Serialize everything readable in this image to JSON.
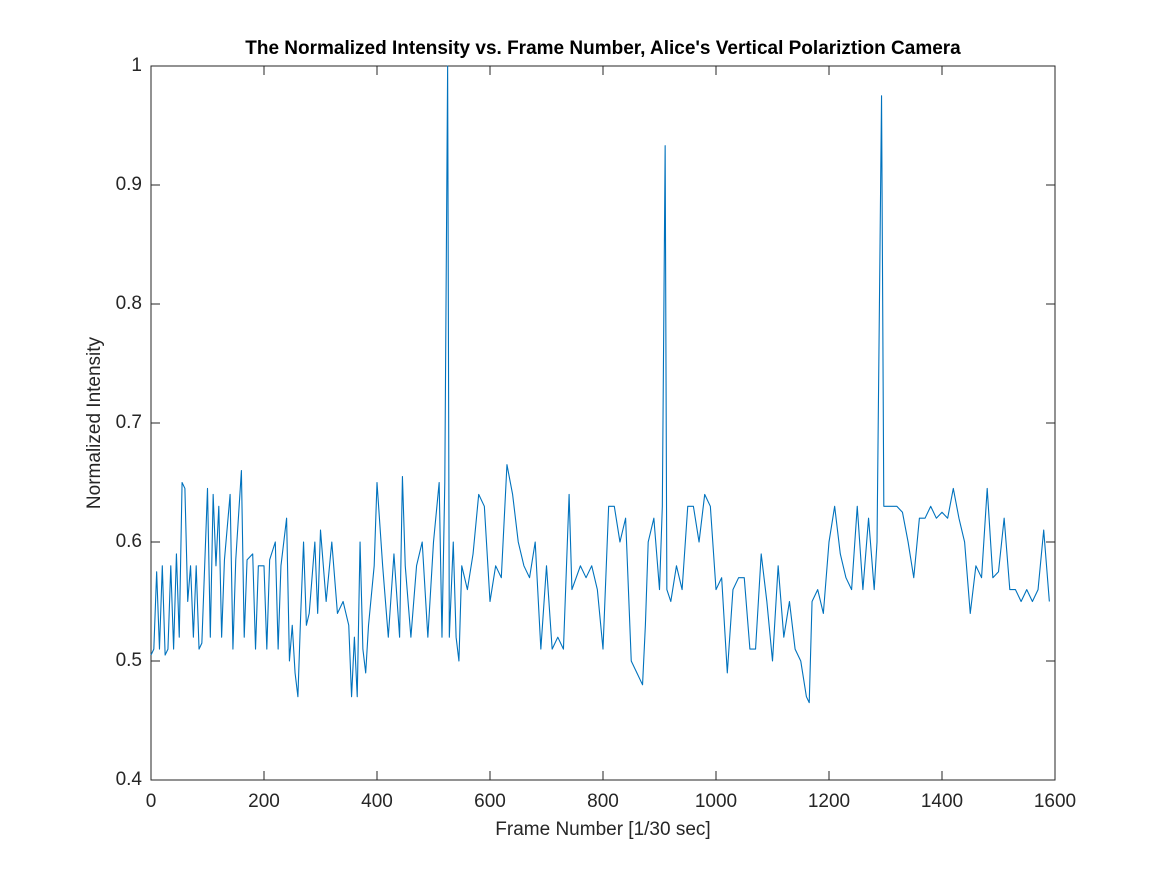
{
  "chart_data": {
    "type": "line",
    "title": "The Normalized Intensity vs. Frame Number, Alice's Vertical Polariztion Camera",
    "x_label": "Frame Number [1/30 sec]",
    "y_label": "Normalized Intensity",
    "xlim": [
      0,
      1600
    ],
    "ylim": [
      0.4,
      1
    ],
    "xticks": [
      0,
      200,
      400,
      600,
      800,
      1000,
      1200,
      1400,
      1600
    ],
    "yticks": [
      0.4,
      0.5,
      0.6,
      0.7,
      0.8,
      0.9,
      1
    ],
    "grid": false,
    "series": [
      {
        "name": "Normalized Intensity",
        "color": "#0072bd",
        "x": [
          0,
          5,
          10,
          15,
          20,
          25,
          30,
          35,
          40,
          45,
          50,
          55,
          60,
          65,
          70,
          75,
          80,
          85,
          90,
          100,
          105,
          110,
          115,
          120,
          125,
          130,
          140,
          145,
          150,
          160,
          165,
          170,
          180,
          185,
          190,
          200,
          205,
          210,
          220,
          225,
          230,
          240,
          245,
          250,
          255,
          260,
          265,
          270,
          275,
          280,
          290,
          295,
          300,
          310,
          320,
          330,
          340,
          350,
          355,
          360,
          365,
          370,
          375,
          380,
          385,
          395,
          400,
          410,
          420,
          430,
          440,
          445,
          450,
          460,
          470,
          480,
          490,
          500,
          510,
          515,
          520,
          525,
          528,
          535,
          540,
          545,
          550,
          560,
          570,
          580,
          590,
          600,
          610,
          620,
          630,
          640,
          650,
          660,
          670,
          680,
          690,
          700,
          710,
          720,
          730,
          740,
          745,
          760,
          770,
          780,
          790,
          800,
          810,
          820,
          830,
          840,
          850,
          860,
          870,
          875,
          880,
          890,
          900,
          905,
          910,
          913,
          920,
          930,
          940,
          950,
          960,
          970,
          980,
          990,
          1000,
          1010,
          1020,
          1030,
          1040,
          1050,
          1060,
          1070,
          1080,
          1090,
          1100,
          1110,
          1120,
          1130,
          1140,
          1150,
          1160,
          1165,
          1170,
          1180,
          1190,
          1200,
          1210,
          1220,
          1230,
          1240,
          1250,
          1260,
          1270,
          1280,
          1285,
          1293,
          1297,
          1310,
          1320,
          1330,
          1340,
          1350,
          1360,
          1370,
          1380,
          1390,
          1400,
          1410,
          1420,
          1430,
          1440,
          1450,
          1460,
          1470,
          1480,
          1490,
          1500,
          1510,
          1520,
          1530,
          1540,
          1550,
          1560,
          1570,
          1580,
          1590
        ],
        "values": [
          0.505,
          0.51,
          0.575,
          0.51,
          0.58,
          0.505,
          0.51,
          0.58,
          0.51,
          0.59,
          0.52,
          0.65,
          0.645,
          0.55,
          0.58,
          0.52,
          0.58,
          0.51,
          0.515,
          0.645,
          0.52,
          0.64,
          0.58,
          0.63,
          0.52,
          0.585,
          0.64,
          0.51,
          0.585,
          0.66,
          0.52,
          0.585,
          0.59,
          0.51,
          0.58,
          0.58,
          0.51,
          0.585,
          0.6,
          0.51,
          0.58,
          0.62,
          0.5,
          0.53,
          0.49,
          0.47,
          0.54,
          0.6,
          0.53,
          0.54,
          0.6,
          0.54,
          0.61,
          0.55,
          0.6,
          0.54,
          0.55,
          0.53,
          0.47,
          0.52,
          0.47,
          0.6,
          0.51,
          0.49,
          0.53,
          0.58,
          0.65,
          0.58,
          0.52,
          0.59,
          0.52,
          0.655,
          0.58,
          0.52,
          0.58,
          0.6,
          0.52,
          0.6,
          0.65,
          0.52,
          0.65,
          1.0,
          0.52,
          0.6,
          0.52,
          0.5,
          0.58,
          0.56,
          0.59,
          0.64,
          0.63,
          0.55,
          0.58,
          0.57,
          0.665,
          0.64,
          0.6,
          0.58,
          0.57,
          0.6,
          0.51,
          0.58,
          0.51,
          0.52,
          0.51,
          0.64,
          0.56,
          0.58,
          0.57,
          0.58,
          0.56,
          0.51,
          0.63,
          0.63,
          0.6,
          0.62,
          0.5,
          0.49,
          0.48,
          0.53,
          0.6,
          0.62,
          0.56,
          0.63,
          0.933,
          0.56,
          0.55,
          0.58,
          0.56,
          0.63,
          0.63,
          0.6,
          0.64,
          0.63,
          0.56,
          0.57,
          0.49,
          0.56,
          0.57,
          0.57,
          0.51,
          0.51,
          0.59,
          0.55,
          0.5,
          0.58,
          0.52,
          0.55,
          0.51,
          0.5,
          0.47,
          0.465,
          0.55,
          0.56,
          0.54,
          0.6,
          0.63,
          0.59,
          0.57,
          0.56,
          0.63,
          0.56,
          0.62,
          0.56,
          0.6,
          0.975,
          0.63,
          0.63,
          0.63,
          0.625,
          0.6,
          0.57,
          0.62,
          0.62,
          0.63,
          0.62,
          0.625,
          0.62,
          0.645,
          0.62,
          0.6,
          0.54,
          0.58,
          0.57,
          0.645,
          0.57,
          0.575,
          0.62,
          0.56,
          0.56,
          0.55,
          0.56,
          0.55,
          0.56,
          0.61,
          0.55
        ]
      }
    ]
  }
}
